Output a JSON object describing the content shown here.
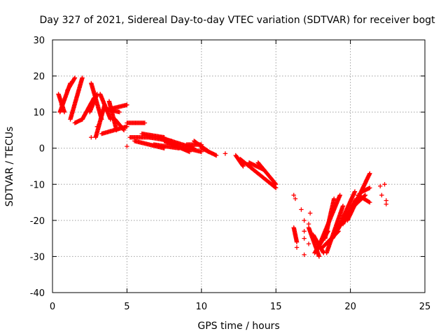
{
  "chart_data": {
    "type": "scatter",
    "title": "Day 327 of 2021, Sidereal Day-to-day VTEC variation (SDTVAR) for receiver bogt",
    "xlabel": "GPS time / hours",
    "ylabel": "SDTVAR / TECUs",
    "xlim": [
      0,
      25
    ],
    "ylim": [
      -40,
      30
    ],
    "xticks": [
      0,
      5,
      10,
      15,
      20,
      25
    ],
    "yticks": [
      -40,
      -30,
      -20,
      -10,
      0,
      10,
      20,
      30
    ],
    "x_tick_labels": [
      "0",
      "5",
      "10",
      "15",
      "20",
      "25"
    ],
    "y_tick_labels": [
      "-40",
      "-30",
      "-20",
      "-10",
      "0",
      "10",
      "20",
      "30"
    ],
    "grid": true,
    "marker": "+",
    "marker_color": "#ff0000",
    "series": [
      {
        "name": "SDTVAR",
        "tracks": [
          {
            "start": [
              0.5,
              10
            ],
            "end": [
              1.2,
              18
            ]
          },
          {
            "start": [
              0.4,
              15
            ],
            "end": [
              0.8,
              10
            ]
          },
          {
            "start": [
              1.0,
              16
            ],
            "end": [
              1.5,
              19.5
            ]
          },
          {
            "start": [
              1.2,
              8
            ],
            "end": [
              2.0,
              19.5
            ]
          },
          {
            "start": [
              1.5,
              7
            ],
            "end": [
              2.0,
              8
            ]
          },
          {
            "start": [
              2.0,
              8
            ],
            "end": [
              2.8,
              14
            ]
          },
          {
            "start": [
              2.6,
              18
            ],
            "end": [
              3.3,
              8
            ]
          },
          {
            "start": [
              2.5,
              10
            ],
            "end": [
              3.0,
              15
            ]
          },
          {
            "start": [
              2.9,
              3
            ],
            "end": [
              3.5,
              12
            ]
          },
          {
            "start": [
              3.2,
              15
            ],
            "end": [
              3.9,
              8
            ]
          },
          {
            "start": [
              3.3,
              4
            ],
            "end": [
              5.0,
              6
            ]
          },
          {
            "start": [
              3.8,
              13
            ],
            "end": [
              4.3,
              5
            ]
          },
          {
            "start": [
              4.0,
              11
            ],
            "end": [
              5.0,
              12
            ]
          },
          {
            "start": [
              3.5,
              11
            ],
            "end": [
              4.5,
              10
            ]
          },
          {
            "start": [
              4.2,
              8
            ],
            "end": [
              4.8,
              5
            ]
          },
          {
            "start": [
              5.0,
              7
            ],
            "end": [
              6.2,
              7
            ]
          },
          {
            "start": [
              5.2,
              3
            ],
            "end": [
              6.5,
              3
            ]
          },
          {
            "start": [
              5.5,
              2
            ],
            "end": [
              7.5,
              0
            ]
          },
          {
            "start": [
              6.0,
              4
            ],
            "end": [
              7.5,
              3
            ]
          },
          {
            "start": [
              6.5,
              3
            ],
            "end": [
              8.0,
              2
            ]
          },
          {
            "start": [
              6.8,
              1
            ],
            "end": [
              8.5,
              0
            ]
          },
          {
            "start": [
              7.2,
              3
            ],
            "end": [
              9.5,
              0
            ]
          },
          {
            "start": [
              7.5,
              2
            ],
            "end": [
              9.2,
              -1
            ]
          },
          {
            "start": [
              8.0,
              1
            ],
            "end": [
              10.0,
              -1
            ]
          },
          {
            "start": [
              9.0,
              1
            ],
            "end": [
              10.0,
              1
            ]
          },
          {
            "start": [
              9.5,
              2
            ],
            "end": [
              10.5,
              -1
            ]
          },
          {
            "start": [
              10.0,
              0
            ],
            "end": [
              11.0,
              -2
            ]
          },
          {
            "start": [
              12.3,
              -2
            ],
            "end": [
              12.8,
              -5
            ]
          },
          {
            "start": [
              12.6,
              -3
            ],
            "end": [
              15.0,
              -11
            ]
          },
          {
            "start": [
              13.2,
              -4
            ],
            "end": [
              14.2,
              -6
            ]
          },
          {
            "start": [
              13.8,
              -4
            ],
            "end": [
              15.0,
              -10
            ]
          },
          {
            "start": [
              16.2,
              -22
            ],
            "end": [
              16.4,
              -26
            ]
          },
          {
            "start": [
              17.2,
              -22
            ],
            "end": [
              17.9,
              -30
            ]
          },
          {
            "start": [
              17.5,
              -24
            ],
            "end": [
              18.2,
              -29
            ]
          },
          {
            "start": [
              17.6,
              -29
            ],
            "end": [
              18.5,
              -23
            ]
          },
          {
            "start": [
              18.0,
              -28
            ],
            "end": [
              19.2,
              -23
            ]
          },
          {
            "start": [
              18.0,
              -26
            ],
            "end": [
              19.3,
              -13
            ]
          },
          {
            "start": [
              18.3,
              -25
            ],
            "end": [
              18.9,
              -14
            ]
          },
          {
            "start": [
              18.4,
              -29
            ],
            "end": [
              19.5,
              -16
            ]
          },
          {
            "start": [
              18.8,
              -25
            ],
            "end": [
              19.8,
              -18
            ]
          },
          {
            "start": [
              19.2,
              -22
            ],
            "end": [
              20.3,
              -12
            ]
          },
          {
            "start": [
              19.5,
              -21
            ],
            "end": [
              20.4,
              -14
            ]
          },
          {
            "start": [
              19.8,
              -20
            ],
            "end": [
              21.3,
              -7
            ]
          },
          {
            "start": [
              20.0,
              -17
            ],
            "end": [
              21.0,
              -13
            ]
          },
          {
            "start": [
              20.5,
              -13
            ],
            "end": [
              21.3,
              -15
            ]
          },
          {
            "start": [
              20.8,
              -12
            ],
            "end": [
              21.3,
              -11
            ]
          }
        ],
        "isolated_points": [
          [
            0.6,
            12
          ],
          [
            2.5,
            11
          ],
          [
            2.6,
            3
          ],
          [
            3.0,
            6
          ],
          [
            5.0,
            0.5
          ],
          [
            11.6,
            -1.5
          ],
          [
            16.3,
            -24
          ],
          [
            16.4,
            -27.5
          ],
          [
            16.2,
            -13
          ],
          [
            16.3,
            -14
          ],
          [
            16.7,
            -17
          ],
          [
            16.9,
            -20
          ],
          [
            16.9,
            -23
          ],
          [
            16.9,
            -25
          ],
          [
            16.9,
            -29.5
          ],
          [
            17.2,
            -21
          ],
          [
            17.2,
            -26.5
          ],
          [
            17.3,
            -18
          ],
          [
            22.0,
            -10.5
          ],
          [
            22.1,
            -13
          ],
          [
            22.3,
            -10
          ],
          [
            22.4,
            -14.5
          ],
          [
            22.4,
            -15.5
          ]
        ]
      }
    ]
  }
}
